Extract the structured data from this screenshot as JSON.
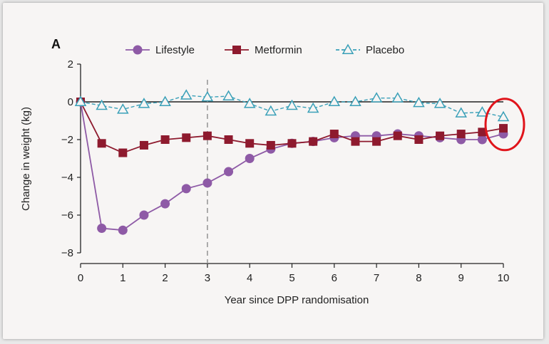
{
  "chart_data": {
    "type": "line",
    "panel_label": "A",
    "xlabel": "Year since DPP randomisation",
    "ylabel": "Change in weight (kg)",
    "xlim": [
      0,
      10
    ],
    "ylim": [
      -8,
      2
    ],
    "x_ticks": [
      0,
      1,
      2,
      3,
      4,
      5,
      6,
      7,
      8,
      9,
      10
    ],
    "y_ticks": [
      2,
      0,
      -2,
      -4,
      -6,
      -8
    ],
    "reference_line_x": 3,
    "highlight_x": 10,
    "legend_position": "top",
    "series": [
      {
        "name": "Lifestyle",
        "color": "#8e5aa6",
        "marker": "circle",
        "x": [
          0,
          0.5,
          1,
          1.5,
          2,
          2.5,
          3,
          3.5,
          4,
          4.5,
          5,
          5.5,
          6,
          6.5,
          7,
          7.5,
          8,
          8.5,
          9,
          9.5,
          10
        ],
        "y": [
          0,
          -6.7,
          -6.8,
          -6.0,
          -5.4,
          -4.6,
          -4.3,
          -3.7,
          -3.0,
          -2.5,
          -2.2,
          -2.1,
          -1.9,
          -1.8,
          -1.8,
          -1.7,
          -1.8,
          -1.9,
          -2.0,
          -2.0,
          -1.7
        ]
      },
      {
        "name": "Metformin",
        "color": "#8e1a2e",
        "marker": "square",
        "x": [
          0,
          0.5,
          1,
          1.5,
          2,
          2.5,
          3,
          3.5,
          4,
          4.5,
          5,
          5.5,
          6,
          6.5,
          7,
          7.5,
          8,
          8.5,
          9,
          9.5,
          10
        ],
        "y": [
          0,
          -2.2,
          -2.7,
          -2.3,
          -2.0,
          -1.9,
          -1.8,
          -2.0,
          -2.2,
          -2.3,
          -2.2,
          -2.1,
          -1.7,
          -2.1,
          -2.1,
          -1.8,
          -2.0,
          -1.8,
          -1.7,
          -1.6,
          -1.4
        ]
      },
      {
        "name": "Placebo",
        "color": "#3aa0b8",
        "marker": "triangle",
        "x": [
          0,
          0.5,
          1,
          1.5,
          2,
          2.5,
          3,
          3.5,
          4,
          4.5,
          5,
          5.5,
          6,
          6.5,
          7,
          7.5,
          8,
          8.5,
          9,
          9.5,
          10
        ],
        "y": [
          0,
          -0.2,
          -0.4,
          -0.1,
          0.0,
          0.35,
          0.25,
          0.3,
          -0.1,
          -0.5,
          -0.2,
          -0.35,
          0.0,
          0.0,
          0.2,
          0.2,
          -0.05,
          -0.1,
          -0.6,
          -0.55,
          -0.8
        ]
      }
    ]
  }
}
